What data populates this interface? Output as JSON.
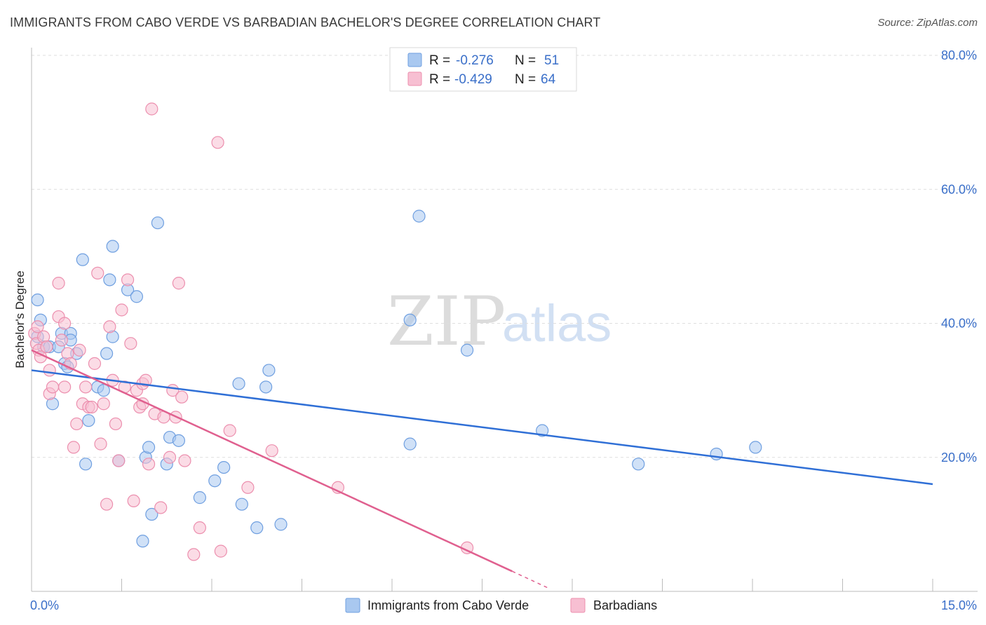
{
  "title": "IMMIGRANTS FROM CABO VERDE VS BARBADIAN BACHELOR'S DEGREE CORRELATION CHART",
  "source": "Source: ZipAtlas.com",
  "watermark": {
    "zip": "ZIP",
    "atlas": "atlas"
  },
  "legend": {
    "rows": [
      {
        "r_label": "R =",
        "r_value": "-0.276",
        "n_label": "N =",
        "n_value": "51",
        "color": "#a9c8f0",
        "stroke": "#6f9fe0"
      },
      {
        "r_label": "R =",
        "r_value": "-0.429",
        "n_label": "N =",
        "n_value": "64",
        "color": "#f7bfd2",
        "stroke": "#ec8fae"
      }
    ]
  },
  "chart_data": {
    "type": "scatter",
    "title": "IMMIGRANTS FROM CABO VERDE VS BARBADIAN BACHELOR'S DEGREE CORRELATION CHART",
    "xlabel": "",
    "ylabel": "Bachelor's Degree",
    "xlim": [
      0,
      15
    ],
    "ylim": [
      0,
      80
    ],
    "x_tick_labels": {
      "left": "0.0%",
      "right": "15.0%"
    },
    "y_ticks": [
      {
        "value": 20,
        "label": "20.0%"
      },
      {
        "value": 40,
        "label": "40.0%"
      },
      {
        "value": 60,
        "label": "60.0%"
      },
      {
        "value": 80,
        "label": "80.0%"
      }
    ],
    "series": [
      {
        "name": "Immigrants from Cabo Verde",
        "color": "#a9c8f0",
        "stroke": "#6f9fe0",
        "line_color": "#2f6fd6",
        "trend": {
          "x0": 0,
          "y0": 33.0,
          "x1": 15,
          "y1": 16.0
        },
        "points": [
          [
            0.1,
            38.0
          ],
          [
            0.1,
            43.5
          ],
          [
            0.15,
            40.5
          ],
          [
            0.2,
            36.5
          ],
          [
            0.3,
            36.5
          ],
          [
            0.35,
            28.0
          ],
          [
            0.45,
            36.5
          ],
          [
            0.5,
            38.5
          ],
          [
            0.55,
            34.0
          ],
          [
            0.6,
            33.5
          ],
          [
            0.65,
            38.5
          ],
          [
            0.65,
            37.5
          ],
          [
            0.75,
            35.5
          ],
          [
            0.85,
            49.5
          ],
          [
            0.9,
            19.0
          ],
          [
            0.95,
            25.5
          ],
          [
            1.1,
            30.5
          ],
          [
            1.2,
            30.0
          ],
          [
            1.25,
            35.5
          ],
          [
            1.3,
            46.5
          ],
          [
            1.35,
            51.5
          ],
          [
            1.35,
            38.0
          ],
          [
            1.45,
            19.5
          ],
          [
            1.6,
            45.0
          ],
          [
            1.75,
            44.0
          ],
          [
            1.85,
            7.5
          ],
          [
            1.9,
            20.0
          ],
          [
            1.95,
            21.5
          ],
          [
            2.0,
            11.5
          ],
          [
            2.1,
            55.0
          ],
          [
            2.25,
            19.0
          ],
          [
            2.3,
            23.0
          ],
          [
            2.45,
            22.5
          ],
          [
            2.8,
            14.0
          ],
          [
            3.05,
            16.5
          ],
          [
            3.2,
            18.5
          ],
          [
            3.45,
            31.0
          ],
          [
            3.5,
            13.0
          ],
          [
            3.75,
            9.5
          ],
          [
            3.9,
            30.5
          ],
          [
            3.95,
            33.0
          ],
          [
            4.15,
            10.0
          ],
          [
            6.3,
            40.5
          ],
          [
            6.3,
            22.0
          ],
          [
            6.45,
            56.0
          ],
          [
            7.25,
            36.0
          ],
          [
            8.5,
            24.0
          ],
          [
            10.1,
            19.0
          ],
          [
            11.4,
            20.5
          ],
          [
            12.05,
            21.5
          ]
        ]
      },
      {
        "name": "Barbadians",
        "color": "#f7bfd2",
        "stroke": "#ec8fae",
        "line_color": "#e0608f",
        "trend": {
          "x0": 0,
          "y0": 36.0,
          "x1": 8.0,
          "y1": 3.0,
          "dash_x1": 8.6,
          "dash_y1": 0.5
        },
        "points": [
          [
            0.05,
            38.5
          ],
          [
            0.08,
            37.0
          ],
          [
            0.1,
            39.5
          ],
          [
            0.12,
            36.0
          ],
          [
            0.15,
            35.0
          ],
          [
            0.2,
            38.0
          ],
          [
            0.25,
            36.5
          ],
          [
            0.3,
            33.0
          ],
          [
            0.3,
            29.5
          ],
          [
            0.35,
            30.5
          ],
          [
            0.45,
            41.0
          ],
          [
            0.45,
            46.0
          ],
          [
            0.5,
            37.5
          ],
          [
            0.55,
            40.0
          ],
          [
            0.55,
            30.5
          ],
          [
            0.6,
            35.5
          ],
          [
            0.65,
            34.0
          ],
          [
            0.7,
            21.5
          ],
          [
            0.75,
            25.0
          ],
          [
            0.8,
            36.0
          ],
          [
            0.85,
            28.0
          ],
          [
            0.9,
            30.5
          ],
          [
            0.95,
            27.5
          ],
          [
            1.0,
            27.5
          ],
          [
            1.05,
            34.0
          ],
          [
            1.1,
            47.5
          ],
          [
            1.15,
            22.0
          ],
          [
            1.2,
            28.0
          ],
          [
            1.25,
            13.0
          ],
          [
            1.3,
            39.5
          ],
          [
            1.35,
            31.5
          ],
          [
            1.4,
            25.0
          ],
          [
            1.45,
            19.5
          ],
          [
            1.5,
            42.0
          ],
          [
            1.55,
            30.5
          ],
          [
            1.6,
            46.5
          ],
          [
            1.65,
            37.0
          ],
          [
            1.7,
            13.5
          ],
          [
            1.75,
            30.0
          ],
          [
            1.8,
            27.5
          ],
          [
            1.85,
            28.0
          ],
          [
            1.85,
            31.0
          ],
          [
            1.9,
            31.5
          ],
          [
            1.95,
            19.0
          ],
          [
            2.0,
            72.0
          ],
          [
            2.05,
            26.5
          ],
          [
            2.15,
            12.5
          ],
          [
            2.2,
            26.0
          ],
          [
            2.3,
            20.0
          ],
          [
            2.35,
            30.0
          ],
          [
            2.4,
            26.0
          ],
          [
            2.45,
            46.0
          ],
          [
            2.5,
            29.0
          ],
          [
            2.55,
            19.5
          ],
          [
            2.7,
            5.5
          ],
          [
            2.8,
            9.5
          ],
          [
            3.1,
            67.0
          ],
          [
            3.15,
            6.0
          ],
          [
            3.3,
            24.0
          ],
          [
            3.6,
            15.5
          ],
          [
            4.0,
            21.0
          ],
          [
            5.1,
            15.5
          ],
          [
            7.25,
            6.5
          ]
        ]
      }
    ]
  }
}
